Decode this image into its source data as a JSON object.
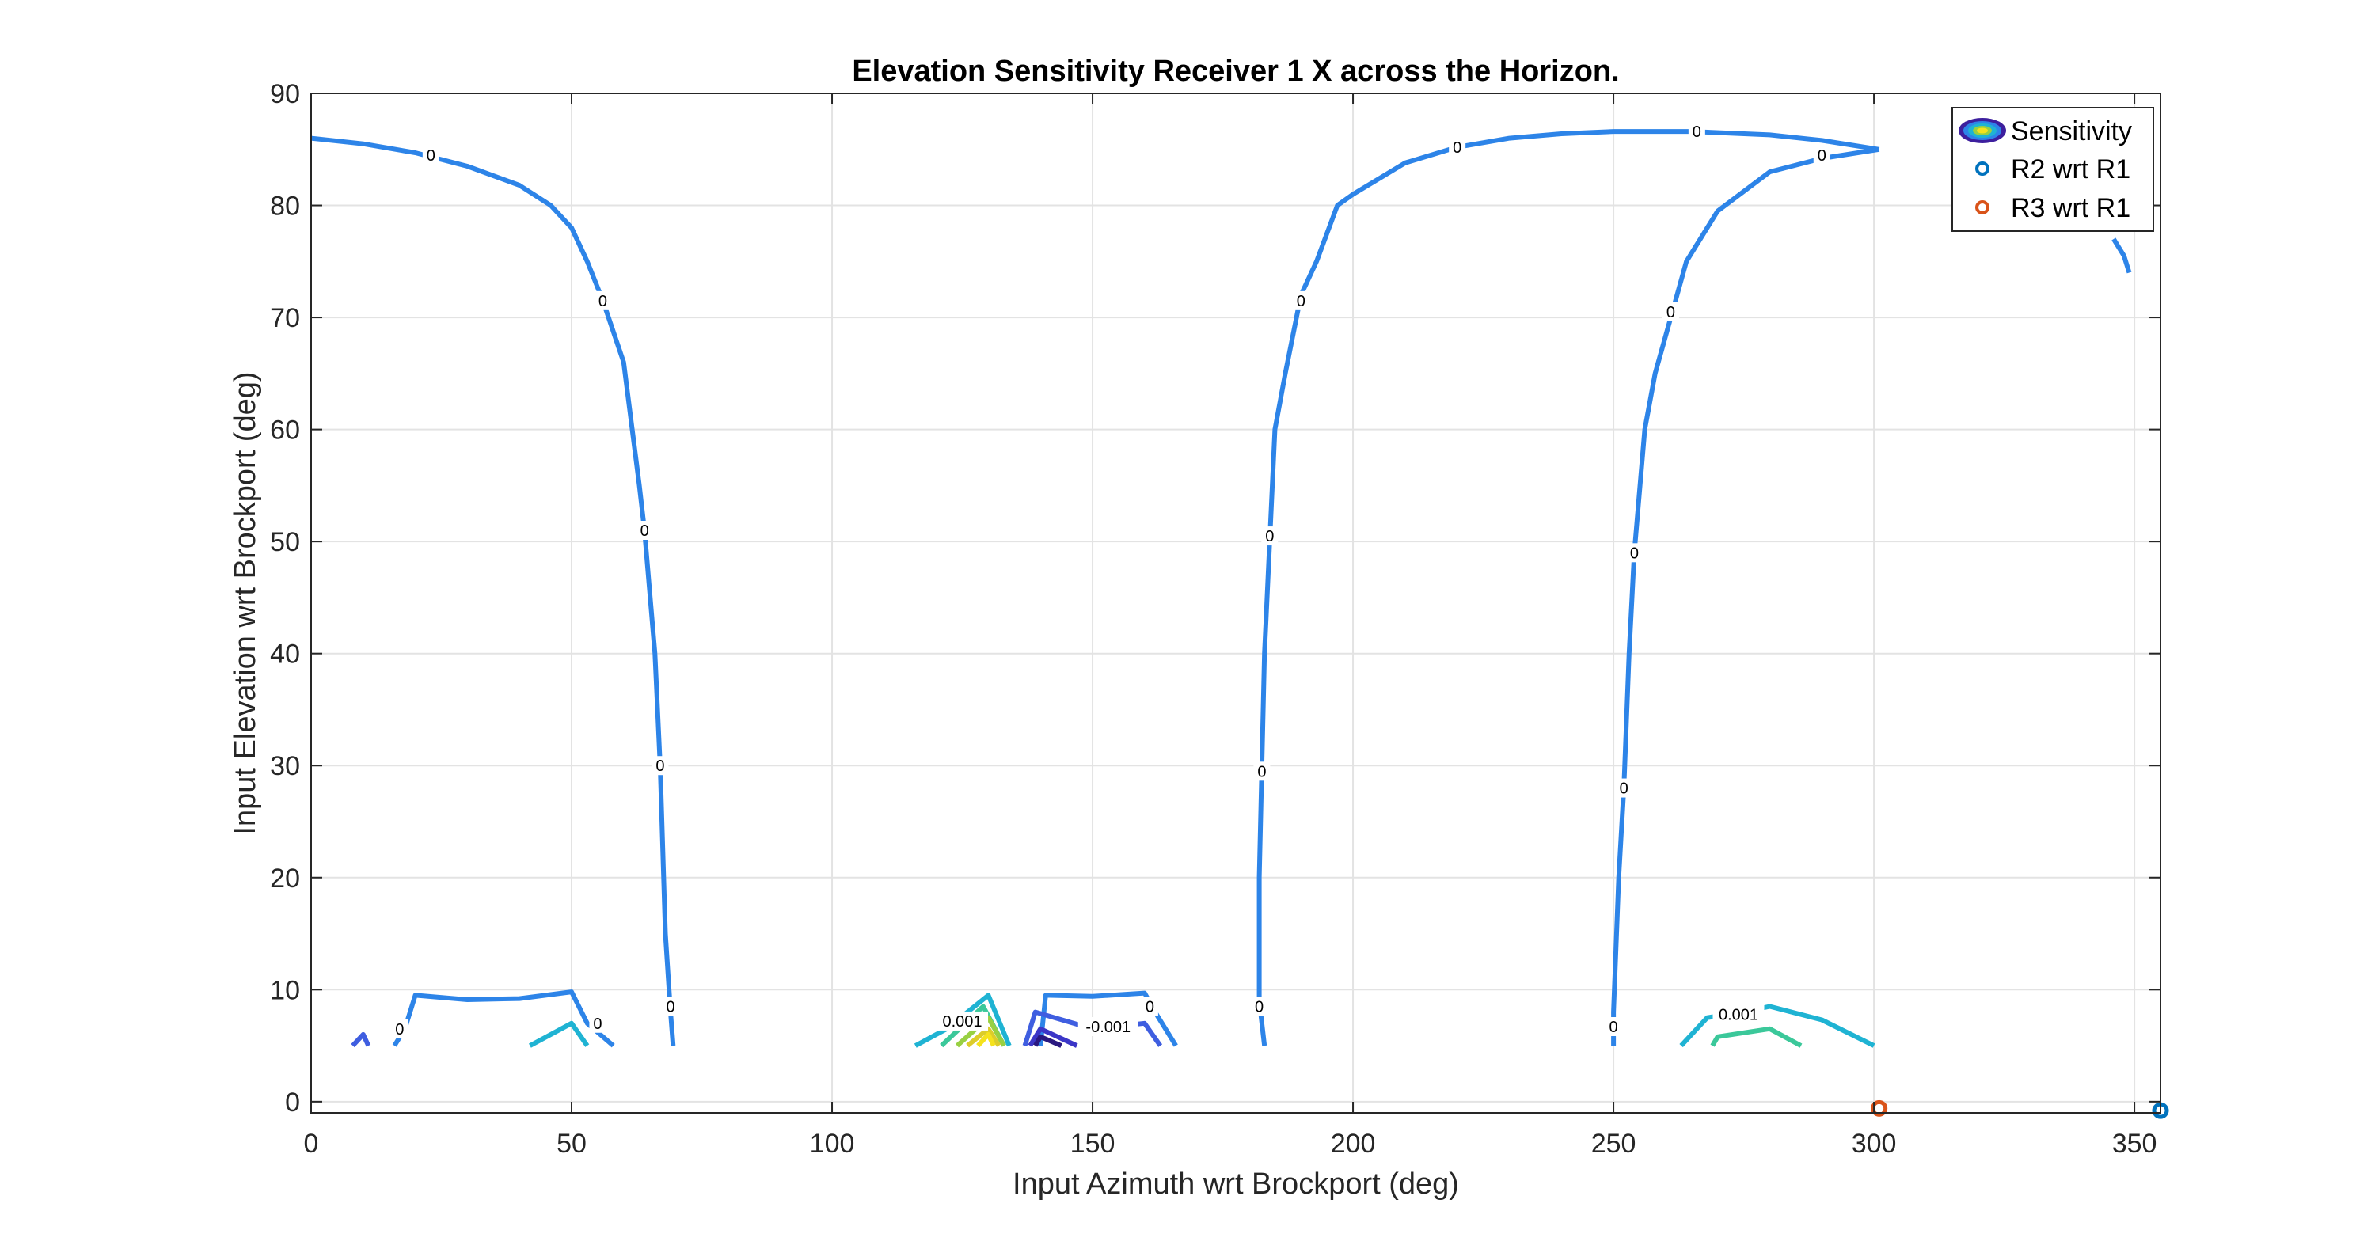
{
  "chart_data": {
    "type": "contour",
    "title": "Elevation Sensitivity Receiver 1 X across the Horizon.",
    "xlabel": "Input Azimuth wrt Brockport (deg)",
    "ylabel": "Input Elevation wrt Brockport (deg)",
    "xlim": [
      0,
      355
    ],
    "ylim": [
      -1,
      90
    ],
    "xticks": [
      0,
      50,
      100,
      150,
      200,
      250,
      300,
      350
    ],
    "yticks": [
      0,
      10,
      20,
      30,
      40,
      50,
      60,
      70,
      80,
      90
    ],
    "grid": true,
    "legend_position": "top-right",
    "legend": [
      {
        "label": "Sensitivity",
        "kind": "contour",
        "color": "#3d1f9e"
      },
      {
        "label": "R2 wrt R1",
        "kind": "marker",
        "color": "#0072bd"
      },
      {
        "label": "R3 wrt R1",
        "kind": "marker",
        "color": "#d95319"
      }
    ],
    "contours": [
      {
        "level": "0",
        "color": "#2d84e8",
        "points": [
          [
            0,
            86
          ],
          [
            10,
            85.5
          ],
          [
            20,
            84.7
          ],
          [
            30,
            83.5
          ],
          [
            40,
            81.8
          ],
          [
            46,
            80
          ],
          [
            50,
            78
          ],
          [
            53,
            75
          ],
          [
            56,
            71.5
          ],
          [
            60,
            66
          ],
          [
            63,
            55
          ],
          [
            64,
            51
          ],
          [
            66,
            40
          ],
          [
            67,
            30
          ],
          [
            68,
            15
          ],
          [
            69,
            8
          ],
          [
            69.5,
            5
          ]
        ]
      },
      {
        "level": "0",
        "color": "#2d84e8",
        "points": [
          [
            183,
            5
          ],
          [
            182,
            9
          ],
          [
            182,
            20
          ],
          [
            182.5,
            30
          ],
          [
            183,
            40
          ],
          [
            184,
            50
          ],
          [
            185,
            60
          ],
          [
            187,
            65
          ],
          [
            190,
            72
          ],
          [
            193,
            75
          ],
          [
            197,
            80
          ],
          [
            200,
            81
          ],
          [
            210,
            83.8
          ],
          [
            220,
            85.2
          ],
          [
            230,
            86
          ],
          [
            240,
            86.4
          ],
          [
            250,
            86.6
          ],
          [
            265,
            86.6
          ],
          [
            280,
            86.3
          ],
          [
            290,
            85.8
          ],
          [
            301,
            85
          ]
        ]
      },
      {
        "level": "0",
        "color": "#2d84e8",
        "points": [
          [
            250,
            5
          ],
          [
            250,
            8
          ],
          [
            251,
            20
          ],
          [
            252,
            28
          ],
          [
            253,
            40
          ],
          [
            254,
            49
          ],
          [
            256,
            60
          ],
          [
            258,
            65
          ],
          [
            261,
            70
          ],
          [
            264,
            75
          ],
          [
            270,
            79.5
          ],
          [
            280,
            83
          ],
          [
            290,
            84.2
          ],
          [
            301,
            85
          ]
        ]
      },
      {
        "level": "0",
        "color": "#2d84e8",
        "points": [
          [
            346,
            77
          ],
          [
            348,
            75.5
          ],
          [
            349,
            74
          ]
        ]
      },
      {
        "level": "0",
        "color": "#2d84e8",
        "points": [
          [
            16,
            5
          ],
          [
            18,
            6.5
          ],
          [
            20,
            9.5
          ],
          [
            30,
            9.1
          ],
          [
            40,
            9.2
          ],
          [
            50,
            9.8
          ],
          [
            53,
            7
          ],
          [
            58,
            5
          ]
        ]
      },
      {
        "level": "0",
        "color": "#2d84e8",
        "points": [
          [
            140,
            5
          ],
          [
            141,
            9.5
          ],
          [
            150,
            9.4
          ],
          [
            160,
            9.7
          ],
          [
            162,
            8
          ],
          [
            166,
            5
          ]
        ]
      },
      {
        "level": "0.0005",
        "color": "#1fb3d3",
        "points": [
          [
            42,
            5
          ],
          [
            50,
            7
          ],
          [
            53,
            5
          ]
        ]
      },
      {
        "level": "0.0005",
        "color": "#1fb3d3",
        "points": [
          [
            116,
            5
          ],
          [
            122,
            6.5
          ],
          [
            130,
            9.5
          ],
          [
            134,
            5
          ]
        ]
      },
      {
        "level": "0.0005",
        "color": "#1fb3d3",
        "points": [
          [
            263,
            5
          ],
          [
            268,
            7.5
          ],
          [
            275,
            8
          ],
          [
            280,
            8.5
          ],
          [
            290,
            7.3
          ],
          [
            300,
            5
          ]
        ]
      },
      {
        "level": "0.001",
        "color": "#3bc89a",
        "points": [
          [
            121,
            5
          ],
          [
            129,
            8.5
          ],
          [
            133,
            5
          ]
        ]
      },
      {
        "level": "0.001",
        "color": "#3bc89a",
        "points": [
          [
            269,
            5
          ],
          [
            270,
            5.8
          ],
          [
            280,
            6.5
          ],
          [
            286,
            5
          ]
        ]
      },
      {
        "level": "0.0015",
        "color": "#98d042",
        "points": [
          [
            124,
            5
          ],
          [
            130,
            7.5
          ],
          [
            133,
            5
          ]
        ]
      },
      {
        "level": "0.002",
        "color": "#dccc2a",
        "points": [
          [
            126,
            5
          ],
          [
            130,
            6.5
          ],
          [
            132,
            5
          ]
        ]
      },
      {
        "level": "0.0025",
        "color": "#f5e21c",
        "points": [
          [
            128,
            5
          ],
          [
            130,
            6
          ],
          [
            131,
            5
          ]
        ]
      },
      {
        "level": "-0.0005",
        "color": "#3f5ee0",
        "points": [
          [
            8,
            5
          ],
          [
            10,
            6
          ],
          [
            11,
            5
          ]
        ]
      },
      {
        "level": "-0.0005",
        "color": "#3f5ee0",
        "points": [
          [
            137,
            5
          ],
          [
            139,
            8
          ],
          [
            150,
            6.5
          ],
          [
            160,
            7
          ],
          [
            163,
            5
          ]
        ]
      },
      {
        "level": "-0.001",
        "color": "#3b36c7",
        "points": [
          [
            138,
            5
          ],
          [
            140,
            6.5
          ],
          [
            147,
            5
          ]
        ]
      },
      {
        "level": "-0.0015",
        "color": "#2a1880",
        "points": [
          [
            139,
            5
          ],
          [
            140,
            5.8
          ],
          [
            144,
            5
          ]
        ]
      }
    ],
    "contour_labels": [
      {
        "text": "0",
        "x": 23,
        "y": 84.5
      },
      {
        "text": "0",
        "x": 56,
        "y": 71.5
      },
      {
        "text": "0",
        "x": 64,
        "y": 51
      },
      {
        "text": "0",
        "x": 67,
        "y": 30
      },
      {
        "text": "0",
        "x": 69,
        "y": 8.5
      },
      {
        "text": "0",
        "x": 17,
        "y": 6.5
      },
      {
        "text": "0",
        "x": 55,
        "y": 7
      },
      {
        "text": "0",
        "x": 161,
        "y": 8.5
      },
      {
        "text": "0",
        "x": 220,
        "y": 85.2
      },
      {
        "text": "0",
        "x": 266,
        "y": 86.6
      },
      {
        "text": "0",
        "x": 290,
        "y": 84.5
      },
      {
        "text": "0",
        "x": 190,
        "y": 71.5
      },
      {
        "text": "0",
        "x": 184,
        "y": 50.5
      },
      {
        "text": "0",
        "x": 182.5,
        "y": 29.5
      },
      {
        "text": "0",
        "x": 182,
        "y": 8.5
      },
      {
        "text": "0",
        "x": 261,
        "y": 70.5
      },
      {
        "text": "0",
        "x": 254,
        "y": 49
      },
      {
        "text": "0",
        "x": 252,
        "y": 28
      },
      {
        "text": "0",
        "x": 250,
        "y": 6.7
      },
      {
        "text": "0.001",
        "x": 125,
        "y": 7.2
      },
      {
        "text": "-0.001",
        "x": 153,
        "y": 6.7
      },
      {
        "text": "0.001",
        "x": 274,
        "y": 7.8
      }
    ],
    "markers": [
      {
        "series": "R2 wrt R1",
        "x": 355,
        "y": -0.8,
        "color": "#0072bd"
      },
      {
        "series": "R3 wrt R1",
        "x": 301,
        "y": -0.6,
        "color": "#d95319"
      }
    ]
  }
}
